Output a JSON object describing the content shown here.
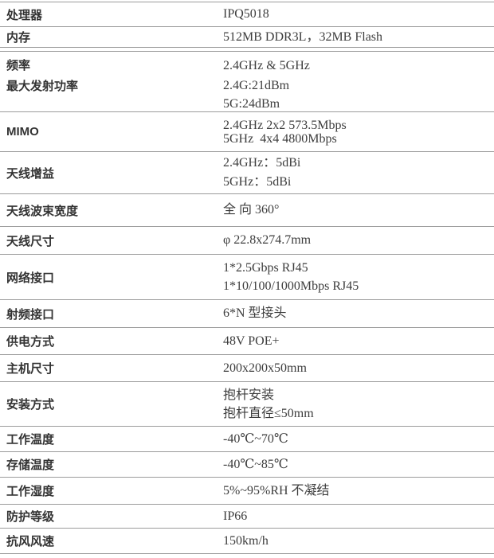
{
  "table": {
    "colors": {
      "line": "#9b9b9b",
      "label_text": "#333333",
      "value_text": "#3d3d3d",
      "background": "#ffffff"
    },
    "rows": [
      {
        "label": "处理器",
        "values": [
          "IPQ5018"
        ]
      },
      {
        "label": "内存",
        "values": [
          "512MB DDR3L，32MB Flash"
        ]
      },
      {
        "label": "频率",
        "values": [
          "2.4GHz & 5GHz"
        ]
      },
      {
        "label": "最大发射功率",
        "values": [
          "2.4G:21dBm",
          "5G:24dBm"
        ]
      },
      {
        "label": "MIMO",
        "values": [
          "2.4GHz 2x2 573.5Mbps",
          "5GHz  4x4 4800Mbps"
        ]
      },
      {
        "label": "天线增益",
        "values": [
          "2.4GHz：5dBi",
          "5GHz：5dBi"
        ]
      },
      {
        "label": "天线波束宽度",
        "values": [
          "全 向 360°"
        ]
      },
      {
        "label": "天线尺寸",
        "values": [
          "φ 22.8x274.7mm"
        ]
      },
      {
        "label": "网络接口",
        "values": [
          "1*2.5Gbps RJ45",
          "1*10/100/1000Mbps RJ45"
        ]
      },
      {
        "label": "射频接口",
        "values": [
          "6*N 型接头"
        ]
      },
      {
        "label": "供电方式",
        "values": [
          "48V POE+"
        ]
      },
      {
        "label": "主机尺寸",
        "values": [
          "200x200x50mm"
        ]
      },
      {
        "label": "安装方式",
        "values": [
          "抱杆安装",
          "抱杆直径≤50mm"
        ]
      },
      {
        "label": "工作温度",
        "values": [
          "-40℃~70℃"
        ]
      },
      {
        "label": "存储温度",
        "values": [
          "-40℃~85℃"
        ]
      },
      {
        "label": "工作湿度",
        "values": [
          "5%~95%RH 不凝结"
        ]
      },
      {
        "label": "防护等级",
        "values": [
          "IP66"
        ]
      },
      {
        "label": "抗风风速",
        "values": [
          "150km/h"
        ]
      }
    ]
  }
}
